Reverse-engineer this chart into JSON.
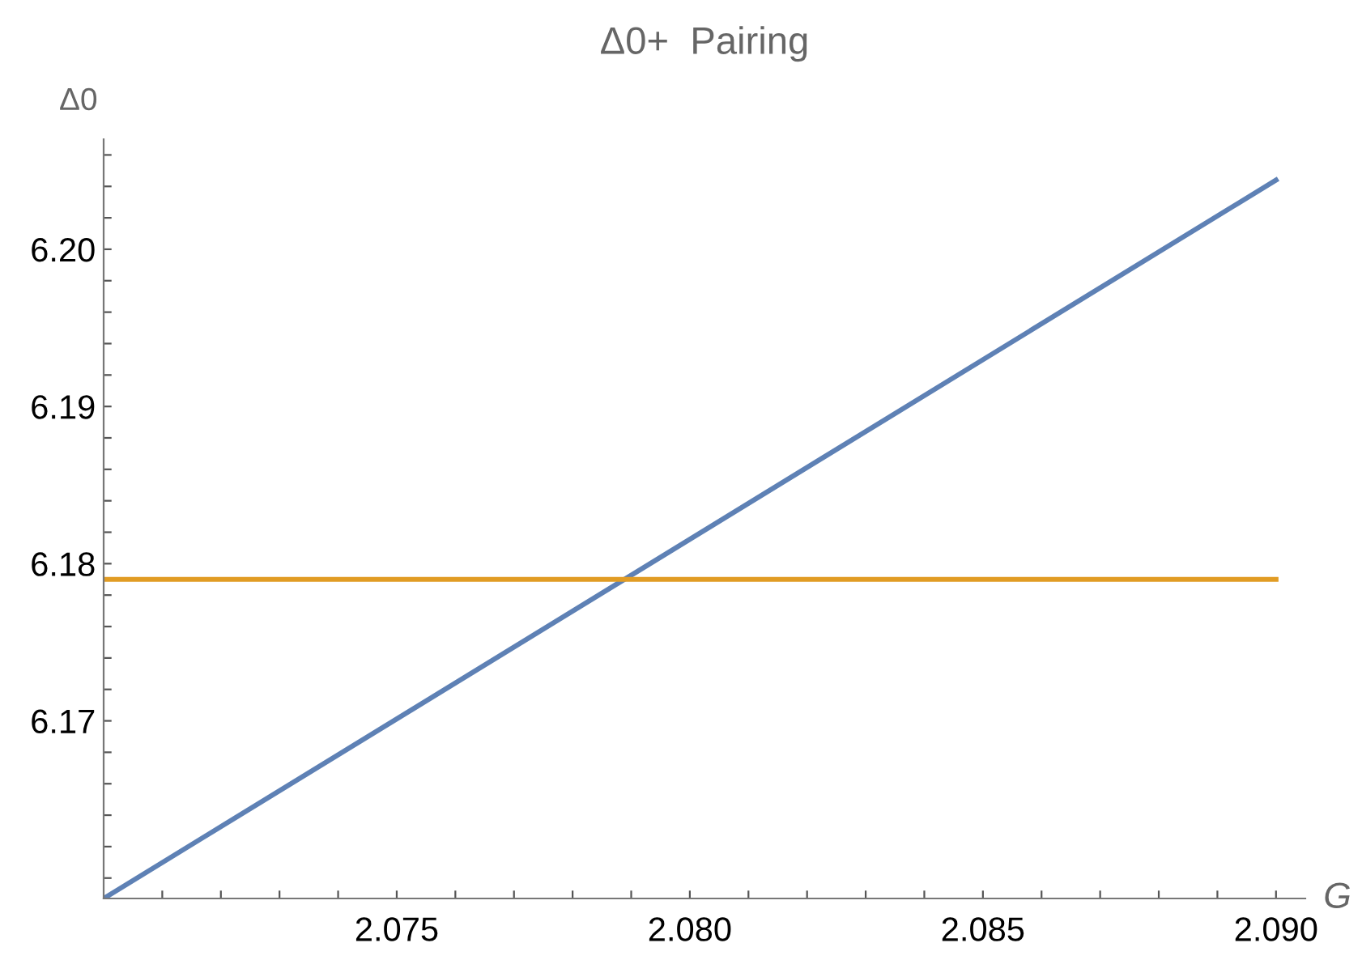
{
  "chart_data": {
    "type": "line",
    "title": "Δ0+  Pairing",
    "xlabel": "G",
    "ylabel": "Δ0",
    "x": [
      2.07,
      2.09
    ],
    "series": [
      {
        "color": "#5e81b5",
        "values": [
          6.1587,
          6.2044
        ]
      },
      {
        "color": "#e19c24",
        "values": [
          6.179,
          6.179
        ]
      }
    ],
    "xlim": [
      2.07,
      2.0905
    ],
    "ylim": [
      6.1587,
      6.207
    ],
    "xticks": [
      {
        "value": 2.071,
        "label": null
      },
      {
        "value": 2.072,
        "label": null
      },
      {
        "value": 2.073,
        "label": null
      },
      {
        "value": 2.074,
        "label": null
      },
      {
        "value": 2.075,
        "label": "2.075"
      },
      {
        "value": 2.076,
        "label": null
      },
      {
        "value": 2.077,
        "label": null
      },
      {
        "value": 2.078,
        "label": null
      },
      {
        "value": 2.079,
        "label": null
      },
      {
        "value": 2.08,
        "label": "2.080"
      },
      {
        "value": 2.081,
        "label": null
      },
      {
        "value": 2.082,
        "label": null
      },
      {
        "value": 2.083,
        "label": null
      },
      {
        "value": 2.084,
        "label": null
      },
      {
        "value": 2.085,
        "label": "2.085"
      },
      {
        "value": 2.086,
        "label": null
      },
      {
        "value": 2.087,
        "label": null
      },
      {
        "value": 2.088,
        "label": null
      },
      {
        "value": 2.089,
        "label": null
      },
      {
        "value": 2.09,
        "label": "2.090"
      }
    ],
    "yticks": [
      {
        "value": 6.16,
        "label": null
      },
      {
        "value": 6.162,
        "label": null
      },
      {
        "value": 6.164,
        "label": null
      },
      {
        "value": 6.166,
        "label": null
      },
      {
        "value": 6.168,
        "label": null
      },
      {
        "value": 6.17,
        "label": "6.17"
      },
      {
        "value": 6.172,
        "label": null
      },
      {
        "value": 6.174,
        "label": null
      },
      {
        "value": 6.176,
        "label": null
      },
      {
        "value": 6.178,
        "label": null
      },
      {
        "value": 6.18,
        "label": "6.18"
      },
      {
        "value": 6.182,
        "label": null
      },
      {
        "value": 6.184,
        "label": null
      },
      {
        "value": 6.186,
        "label": null
      },
      {
        "value": 6.188,
        "label": null
      },
      {
        "value": 6.19,
        "label": "6.19"
      },
      {
        "value": 6.192,
        "label": null
      },
      {
        "value": 6.194,
        "label": null
      },
      {
        "value": 6.196,
        "label": null
      },
      {
        "value": 6.198,
        "label": null
      },
      {
        "value": 6.2,
        "label": "6.20"
      },
      {
        "value": 6.202,
        "label": null
      },
      {
        "value": 6.204,
        "label": null
      },
      {
        "value": 6.206,
        "label": null
      }
    ],
    "grid": false,
    "marker": "none",
    "line_style": "solid"
  }
}
